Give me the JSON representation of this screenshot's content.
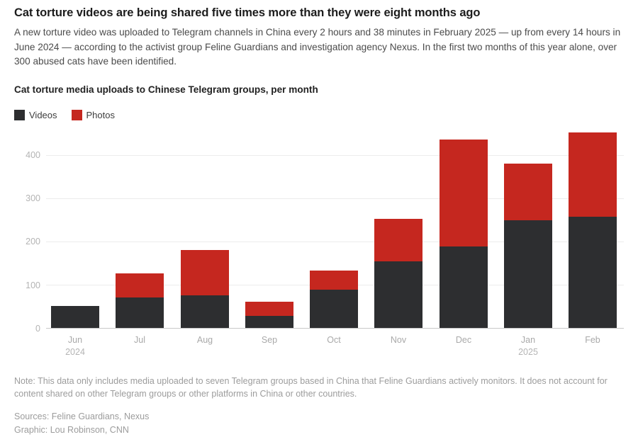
{
  "header": {
    "title": "Cat torture videos are being shared five times more than they were eight months ago",
    "description": "A new torture video was uploaded to Telegram channels in China every 2 hours and 38 minutes in February 2025 — up from every 14 hours in June 2024 — according to the activist group Feline Guardians and investigation agency Nexus. In the first two months of this year alone, over 300 abused cats have been identified."
  },
  "chart": {
    "title": "Cat torture media uploads to Chinese Telegram groups, per month"
  },
  "chart_data": {
    "type": "bar",
    "stacked": true,
    "title": "Cat torture media uploads to Chinese Telegram groups, per month",
    "categories": [
      "Jun",
      "Jul",
      "Aug",
      "Sep",
      "Oct",
      "Nov",
      "Dec",
      "Jan",
      "Feb"
    ],
    "category_sublabels": [
      "2024",
      "",
      "",
      "",
      "",
      "",
      "",
      "2025",
      ""
    ],
    "series": [
      {
        "name": "Videos",
        "color": "#2d2e30",
        "values": [
          50,
          70,
          75,
          28,
          88,
          154,
          188,
          249,
          256
        ]
      },
      {
        "name": "Photos",
        "color": "#c5271f",
        "values": [
          0,
          56,
          105,
          32,
          44,
          98,
          248,
          131,
          195
        ]
      }
    ],
    "totals": [
      50,
      126,
      180,
      60,
      132,
      252,
      436,
      380,
      451
    ],
    "xlabel": "",
    "ylabel": "",
    "ylim": [
      0,
      460
    ],
    "yticks": [
      0,
      100,
      200,
      300,
      400
    ],
    "grid": true,
    "legend_position": "top-left"
  },
  "footer": {
    "note": "Note: This data only includes media uploaded to seven Telegram groups based in China that Feline Guardians actively monitors. It does not account for content shared on other Telegram groups or other platforms in China or other countries.",
    "sources": "Sources: Feline Guardians, Nexus",
    "credit": "Graphic: Lou Robinson, CNN"
  }
}
